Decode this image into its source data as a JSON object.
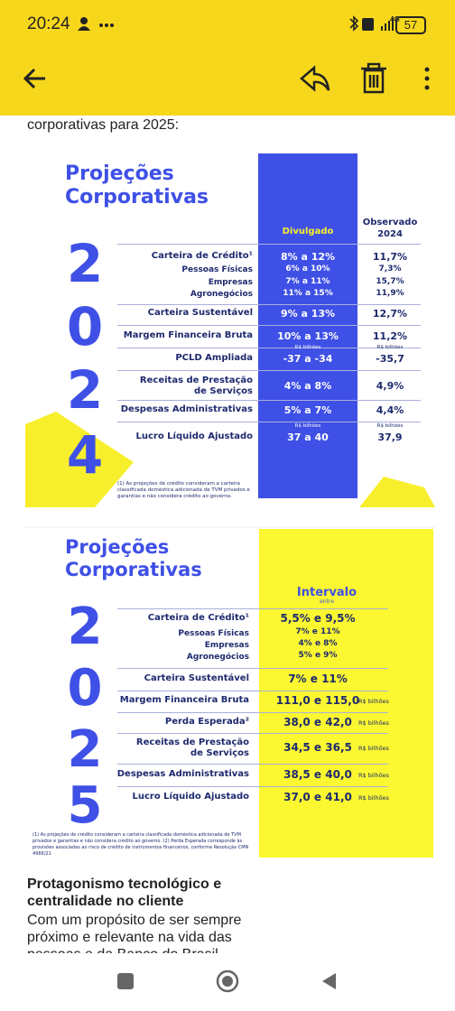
{
  "status_bar": {
    "time": "20:24",
    "network": "4G",
    "battery": "57"
  },
  "intro": "corporativas para 2025:",
  "card_2024": {
    "title": [
      "Projeções",
      "Corporativas"
    ],
    "digits": [
      "2",
      "0",
      "2",
      "4"
    ],
    "headers": {
      "disclosed": "Divulgado",
      "observed": "Observado\n2024"
    },
    "rows": [
      {
        "label": "Carteira de Crédito¹",
        "value": "8% a 12%",
        "observed": "11,7%"
      },
      {
        "label": "Pessoas Físicas",
        "value": "6% a 10%",
        "observed": "7,3%"
      },
      {
        "label": "Empresas",
        "value": "7% a 11%",
        "observed": "15,7%"
      },
      {
        "label": "Agronegócios",
        "value": "11% a 15%",
        "observed": "11,9%"
      },
      {
        "label": "Carteira Sustentável",
        "value": "9% a 13%",
        "observed": "12,7%"
      },
      {
        "label": "Margem Financeira Bruta",
        "value": "10% a 13%",
        "observed": "11,2%"
      },
      {
        "label": "PCLD Ampliada",
        "value_unit": "R$ bilhões",
        "value": "-37 a -34",
        "observed_unit": "R$ bilhões",
        "observed": "-35,7"
      },
      {
        "label": "Receitas de Prestação\nde Serviços",
        "value": "4% a 8%",
        "observed": "4,9%"
      },
      {
        "label": "Despesas Administrativas",
        "value": "5% a 7%",
        "observed": "4,4%"
      },
      {
        "label": "Lucro Líquido Ajustado",
        "value_unit": "R$ bilhões",
        "value": "37 a 40",
        "observed_unit": "R$ bilhões",
        "observed": "37,9"
      }
    ],
    "footnote": "(1) As projeções de crédito consideram a carteira classificada doméstica adicionada de TVM privados e garantias e não considera crédito ao governo."
  },
  "card_2025": {
    "title": [
      "Projeções",
      "Corporativas"
    ],
    "digits": [
      "2",
      "0",
      "2",
      "5"
    ],
    "headers": {
      "range": "Intervalo",
      "range_sub": "entre"
    },
    "rows": [
      {
        "label": "Carteira de Crédito¹",
        "value": "5,5% e 9,5%"
      },
      {
        "label": "Pessoas Físicas",
        "value": "7% e 11%"
      },
      {
        "label": "Empresas",
        "value": "4% e 8%"
      },
      {
        "label": "Agronegócios",
        "value": "5% e 9%"
      },
      {
        "label": "Carteira Sustentável",
        "value": "7% e 11%"
      },
      {
        "label": "Margem Financeira Bruta",
        "value": "111,0 e 115,0",
        "unit": "R$ bilhões"
      },
      {
        "label": "Perda Esperada²",
        "value": "38,0 e 42,0",
        "unit": "R$ bilhões"
      },
      {
        "label": "Receitas de Prestação\nde Serviços",
        "value": "34,5 e 36,5",
        "unit": "R$ bilhões"
      },
      {
        "label": "Despesas Administrativas",
        "value": "38,5 e 40,0",
        "unit": "R$ bilhões"
      },
      {
        "label": "Lucro Líquido Ajustado",
        "value": "37,0 e 41,0",
        "unit": "R$ bilhões"
      }
    ],
    "footnote": "(1) As projeções de crédito consideram a carteira classificada doméstica adicionada de TVM privados e garantias e não considera crédito ao governo. (2) Perda Esperada corresponde às provisões associadas ao risco de crédito de instrumentos financeiros, conforme Resolução CMN 4966/21"
  },
  "article": {
    "heading": "Protagonismo tecnológico e centralidade no cliente",
    "paragraph": "Com um propósito de ser sempre próximo e relevante na vida das pessoas e da Banco do Brasil"
  }
}
